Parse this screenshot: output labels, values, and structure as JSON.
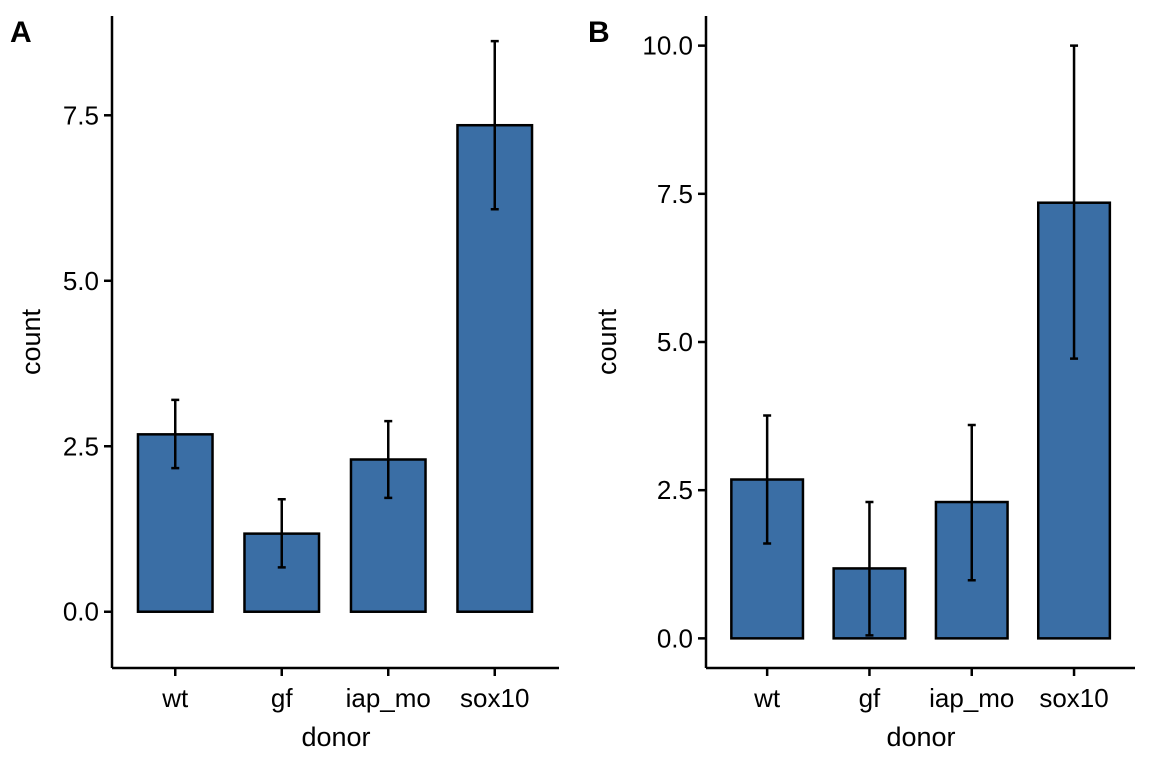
{
  "figure": {
    "background": "#ffffff",
    "bar_fill": "#3a6ea5",
    "stroke": "#000000"
  },
  "chart_data": [
    {
      "type": "bar",
      "panel_label": "A",
      "categories": [
        "wt",
        "gf",
        "iap_mo",
        "sox10"
      ],
      "values": [
        2.68,
        1.18,
        2.3,
        7.35
      ],
      "error_low": [
        2.17,
        0.67,
        1.72,
        6.08
      ],
      "error_high": [
        3.2,
        1.7,
        2.88,
        8.62
      ],
      "xlabel": "donor",
      "ylabel": "count",
      "ylim": [
        -0.85,
        9.0
      ],
      "yticks": [
        0.0,
        2.5,
        5.0,
        7.5
      ],
      "ytick_labels": [
        "0.0",
        "2.5",
        "5.0",
        "7.5"
      ],
      "grid": false,
      "legend": "none"
    },
    {
      "type": "bar",
      "panel_label": "B",
      "categories": [
        "wt",
        "gf",
        "iap_mo",
        "sox10"
      ],
      "values": [
        2.68,
        1.18,
        2.3,
        7.35
      ],
      "error_low": [
        1.6,
        0.05,
        0.98,
        4.72
      ],
      "error_high": [
        3.76,
        2.3,
        3.6,
        10.0
      ],
      "xlabel": "donor",
      "ylabel": "count",
      "ylim": [
        -0.5,
        10.5
      ],
      "yticks": [
        0.0,
        2.5,
        5.0,
        7.5,
        10.0
      ],
      "ytick_labels": [
        "0.0",
        "2.5",
        "5.0",
        "7.5",
        "10.0"
      ],
      "grid": false,
      "legend": "none"
    }
  ]
}
